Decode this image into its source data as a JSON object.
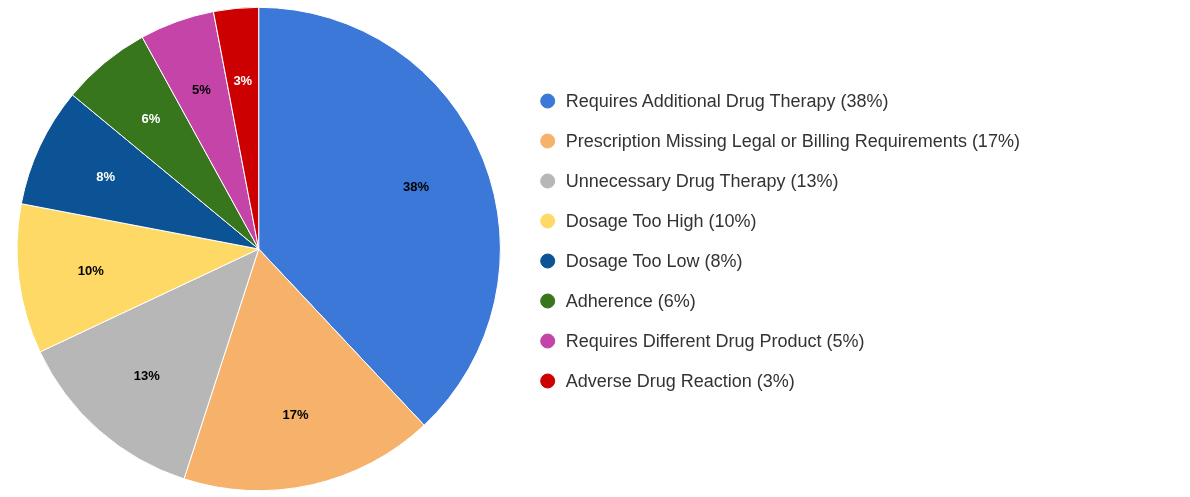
{
  "chart_data": {
    "type": "pie",
    "categories": [
      "Requires Additional Drug Therapy (38%)",
      "Prescription Missing Legal or Billing Requirements (17%)",
      "Unnecessary Drug Therapy (13%)",
      "Dosage Too High (10%)",
      "Dosage Too Low (8%)",
      "Adherence (6%)",
      "Requires Different Drug Product (5%)",
      "Adverse Drug Reaction (3%)"
    ],
    "values": [
      38,
      17,
      13,
      10,
      8,
      6,
      5,
      3
    ],
    "value_labels": [
      "38%",
      "17%",
      "13%",
      "10%",
      "8%",
      "6%",
      "5%",
      "3%"
    ],
    "colors": [
      "#3c78d8",
      "#f6b26b",
      "#b7b7b7",
      "#ffd966",
      "#0b5394",
      "#38761d",
      "#c444a8",
      "#cc0000"
    ],
    "legend": "right"
  }
}
